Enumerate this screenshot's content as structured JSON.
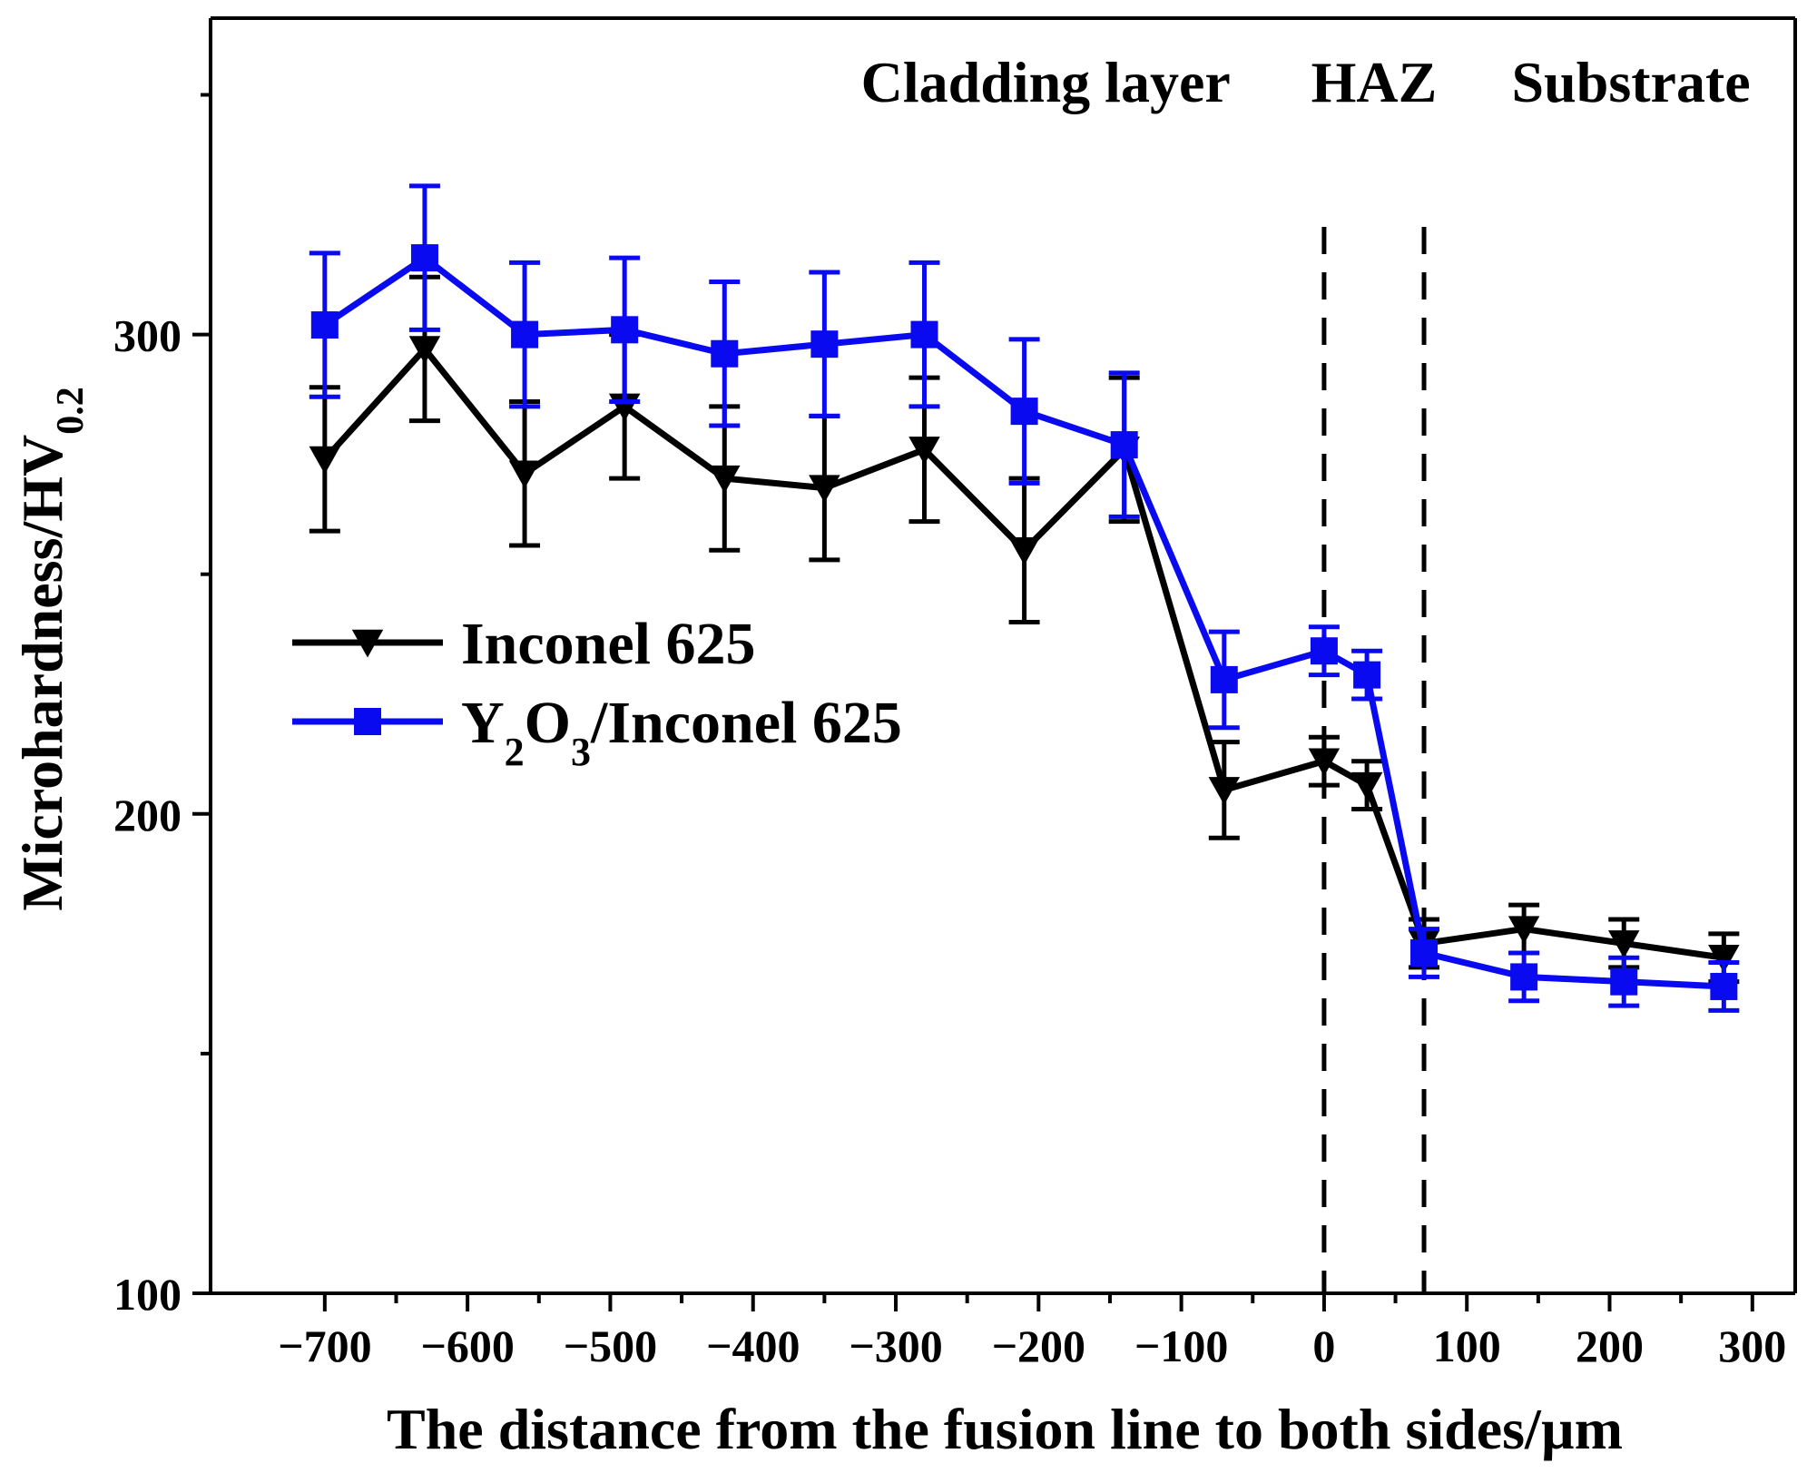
{
  "chart_data": {
    "type": "line",
    "xlabel": "The distance from the fusion line to both sides/µm",
    "ylabel_main": "Microhardness/HV",
    "ylabel_sub": "0.2",
    "xlim": [
      -780,
      330
    ],
    "ylim": [
      100,
      366
    ],
    "x_ticks": [
      -700,
      -600,
      -500,
      -400,
      -300,
      -200,
      -100,
      0,
      100,
      200,
      300
    ],
    "x_tick_labels": [
      "−700",
      "−600",
      "−500",
      "−400",
      "−300",
      "−200",
      "−100",
      "0",
      "100",
      "200",
      "300"
    ],
    "x_minor_ticks": [
      -650,
      -550,
      -450,
      -350,
      -250,
      -150,
      -50,
      50,
      150,
      250
    ],
    "y_ticks": [
      100,
      200,
      300
    ],
    "y_tick_labels": [
      "100",
      "200",
      "300"
    ],
    "y_minor_ticks": [
      150,
      250,
      350
    ],
    "grid": false,
    "vlines": [
      0,
      70
    ],
    "regions": [
      {
        "label": "Cladding layer",
        "x_center": -195
      },
      {
        "label": "HAZ",
        "x_center": 35
      },
      {
        "label": "Substrate",
        "x_center": 215
      }
    ],
    "legend": {
      "position": "center-left",
      "entries": [
        {
          "name": "Inconel 625",
          "marker": "triangle-down",
          "color": "#000000"
        },
        {
          "name_parts": [
            "Y",
            "2",
            "O",
            "3",
            "/Inconel 625"
          ],
          "marker": "square",
          "color": "#0a0af0"
        }
      ]
    },
    "series": [
      {
        "name": "Inconel 625",
        "color": "#000000",
        "marker": "triangle-down",
        "x": [
          -700,
          -630,
          -560,
          -490,
          -420,
          -350,
          -280,
          -210,
          -140,
          -70,
          0,
          30,
          70,
          140,
          210,
          280
        ],
        "y": [
          274,
          297,
          271,
          285,
          270,
          268,
          276,
          255,
          276,
          205,
          211,
          206,
          173,
          176,
          173,
          170
        ],
        "err": [
          15,
          15,
          15,
          15,
          15,
          15,
          15,
          15,
          15,
          10,
          5,
          5,
          5,
          5,
          5,
          5
        ]
      },
      {
        "name": "Y2O3/Inconel 625",
        "color": "#0a0af0",
        "marker": "square",
        "x": [
          -700,
          -630,
          -560,
          -490,
          -420,
          -350,
          -280,
          -210,
          -140,
          -70,
          0,
          30,
          70,
          140,
          210,
          280
        ],
        "y": [
          302,
          316,
          300,
          301,
          296,
          298,
          300,
          284,
          277,
          228,
          234,
          229,
          171,
          166,
          165,
          164
        ],
        "err": [
          15,
          15,
          15,
          15,
          15,
          15,
          15,
          15,
          15,
          10,
          5,
          5,
          5,
          5,
          5,
          5
        ]
      }
    ]
  }
}
